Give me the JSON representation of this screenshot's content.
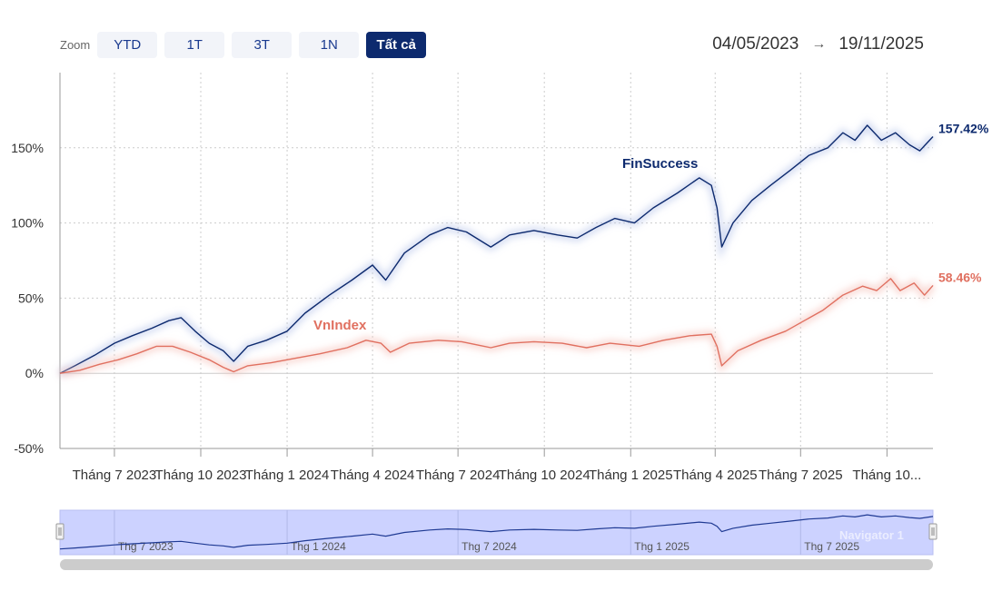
{
  "zoom": {
    "label": "Zoom",
    "buttons": [
      "YTD",
      "1T",
      "3T",
      "1N",
      "Tất cả"
    ],
    "active_index": 4
  },
  "range": {
    "from": "04/05/2023",
    "arrow": "→",
    "to": "19/11/2025"
  },
  "colors": {
    "finsuccess": "#0d2a6e",
    "vnindex": "#e07060",
    "navigator_fill": "#ccd2ff",
    "navigator_line": "#1f3a93",
    "scrollbar": "#cccccc"
  },
  "chart_data": {
    "type": "line",
    "x_range": [
      "2023-05-04",
      "2025-11-19"
    ],
    "ylim": [
      -50,
      200
    ],
    "y_ticks": [
      -50,
      0,
      50,
      100,
      150
    ],
    "y_tick_labels": [
      "-50%",
      "0%",
      "50%",
      "100%",
      "150%"
    ],
    "x_tick_labels": [
      {
        "date": "2023-07-01",
        "label": "Tháng 7 2023"
      },
      {
        "date": "2023-10-01",
        "label": "Tháng 10 2023"
      },
      {
        "date": "2024-01-01",
        "label": "Tháng 1 2024"
      },
      {
        "date": "2024-04-01",
        "label": "Tháng 4 2024"
      },
      {
        "date": "2024-07-01",
        "label": "Tháng 7 2024"
      },
      {
        "date": "2024-10-01",
        "label": "Tháng 10 2024"
      },
      {
        "date": "2025-01-01",
        "label": "Tháng 1 2025"
      },
      {
        "date": "2025-04-01",
        "label": "Tháng 4 2025"
      },
      {
        "date": "2025-07-01",
        "label": "Tháng 7 2025"
      },
      {
        "date": "2025-10-01",
        "label": "Tháng 10..."
      }
    ],
    "grid": true,
    "series": [
      {
        "name": "FinSuccess",
        "last_label": "157.42%",
        "points": [
          [
            "2023-05-04",
            0
          ],
          [
            "2023-05-20",
            5
          ],
          [
            "2023-06-10",
            12
          ],
          [
            "2023-07-01",
            20
          ],
          [
            "2023-07-20",
            25
          ],
          [
            "2023-08-10",
            30
          ],
          [
            "2023-08-28",
            35
          ],
          [
            "2023-09-10",
            37
          ],
          [
            "2023-09-25",
            28
          ],
          [
            "2023-10-10",
            20
          ],
          [
            "2023-10-25",
            15
          ],
          [
            "2023-11-05",
            8
          ],
          [
            "2023-11-20",
            18
          ],
          [
            "2023-12-10",
            22
          ],
          [
            "2024-01-01",
            28
          ],
          [
            "2024-01-20",
            40
          ],
          [
            "2024-02-15",
            52
          ],
          [
            "2024-03-10",
            62
          ],
          [
            "2024-04-01",
            72
          ],
          [
            "2024-04-15",
            62
          ],
          [
            "2024-05-05",
            80
          ],
          [
            "2024-06-01",
            92
          ],
          [
            "2024-06-20",
            97
          ],
          [
            "2024-07-10",
            94
          ],
          [
            "2024-08-05",
            84
          ],
          [
            "2024-08-25",
            92
          ],
          [
            "2024-09-20",
            95
          ],
          [
            "2024-10-15",
            92
          ],
          [
            "2024-11-05",
            90
          ],
          [
            "2024-11-25",
            97
          ],
          [
            "2024-12-15",
            103
          ],
          [
            "2025-01-05",
            100
          ],
          [
            "2025-01-25",
            110
          ],
          [
            "2025-02-20",
            120
          ],
          [
            "2025-03-15",
            130
          ],
          [
            "2025-03-28",
            125
          ],
          [
            "2025-04-03",
            110
          ],
          [
            "2025-04-08",
            84
          ],
          [
            "2025-04-20",
            100
          ],
          [
            "2025-05-10",
            115
          ],
          [
            "2025-05-30",
            125
          ],
          [
            "2025-06-20",
            135
          ],
          [
            "2025-07-10",
            145
          ],
          [
            "2025-07-30",
            150
          ],
          [
            "2025-08-15",
            160
          ],
          [
            "2025-08-28",
            155
          ],
          [
            "2025-09-10",
            165
          ],
          [
            "2025-09-25",
            155
          ],
          [
            "2025-10-10",
            160
          ],
          [
            "2025-10-25",
            152
          ],
          [
            "2025-11-05",
            148
          ],
          [
            "2025-11-19",
            157.42
          ]
        ]
      },
      {
        "name": "VnIndex",
        "last_label": "58.46%",
        "points": [
          [
            "2023-05-04",
            0
          ],
          [
            "2023-05-25",
            2
          ],
          [
            "2023-06-15",
            6
          ],
          [
            "2023-07-05",
            9
          ],
          [
            "2023-07-25",
            13
          ],
          [
            "2023-08-15",
            18
          ],
          [
            "2023-09-01",
            18
          ],
          [
            "2023-09-20",
            14
          ],
          [
            "2023-10-10",
            9
          ],
          [
            "2023-10-25",
            4
          ],
          [
            "2023-11-05",
            1
          ],
          [
            "2023-11-20",
            5
          ],
          [
            "2023-12-15",
            7
          ],
          [
            "2024-01-10",
            10
          ],
          [
            "2024-02-05",
            13
          ],
          [
            "2024-03-05",
            17
          ],
          [
            "2024-03-25",
            22
          ],
          [
            "2024-04-10",
            20
          ],
          [
            "2024-04-20",
            14
          ],
          [
            "2024-05-10",
            20
          ],
          [
            "2024-06-10",
            22
          ],
          [
            "2024-07-05",
            21
          ],
          [
            "2024-08-05",
            17
          ],
          [
            "2024-08-25",
            20
          ],
          [
            "2024-09-20",
            21
          ],
          [
            "2024-10-20",
            20
          ],
          [
            "2024-11-15",
            17
          ],
          [
            "2024-12-10",
            20
          ],
          [
            "2025-01-10",
            18
          ],
          [
            "2025-02-05",
            22
          ],
          [
            "2025-03-05",
            25
          ],
          [
            "2025-03-28",
            26
          ],
          [
            "2025-04-03",
            18
          ],
          [
            "2025-04-08",
            5
          ],
          [
            "2025-04-25",
            15
          ],
          [
            "2025-05-20",
            22
          ],
          [
            "2025-06-15",
            28
          ],
          [
            "2025-07-05",
            35
          ],
          [
            "2025-07-25",
            42
          ],
          [
            "2025-08-15",
            52
          ],
          [
            "2025-09-05",
            58
          ],
          [
            "2025-09-20",
            55
          ],
          [
            "2025-10-05",
            63
          ],
          [
            "2025-10-15",
            55
          ],
          [
            "2025-10-30",
            60
          ],
          [
            "2025-11-10",
            52
          ],
          [
            "2025-11-19",
            58.46
          ]
        ]
      }
    ]
  },
  "navigator": {
    "tick_labels": [
      {
        "date": "2023-07-01",
        "label": "Thg 7 2023"
      },
      {
        "date": "2024-01-01",
        "label": "Thg 1 2024"
      },
      {
        "date": "2024-07-01",
        "label": "Thg 7 2024"
      },
      {
        "date": "2025-01-01",
        "label": "Thg 1 2025"
      },
      {
        "date": "2025-07-01",
        "label": "Thg 7 2025"
      }
    ],
    "series_name": "Navigator 1"
  }
}
